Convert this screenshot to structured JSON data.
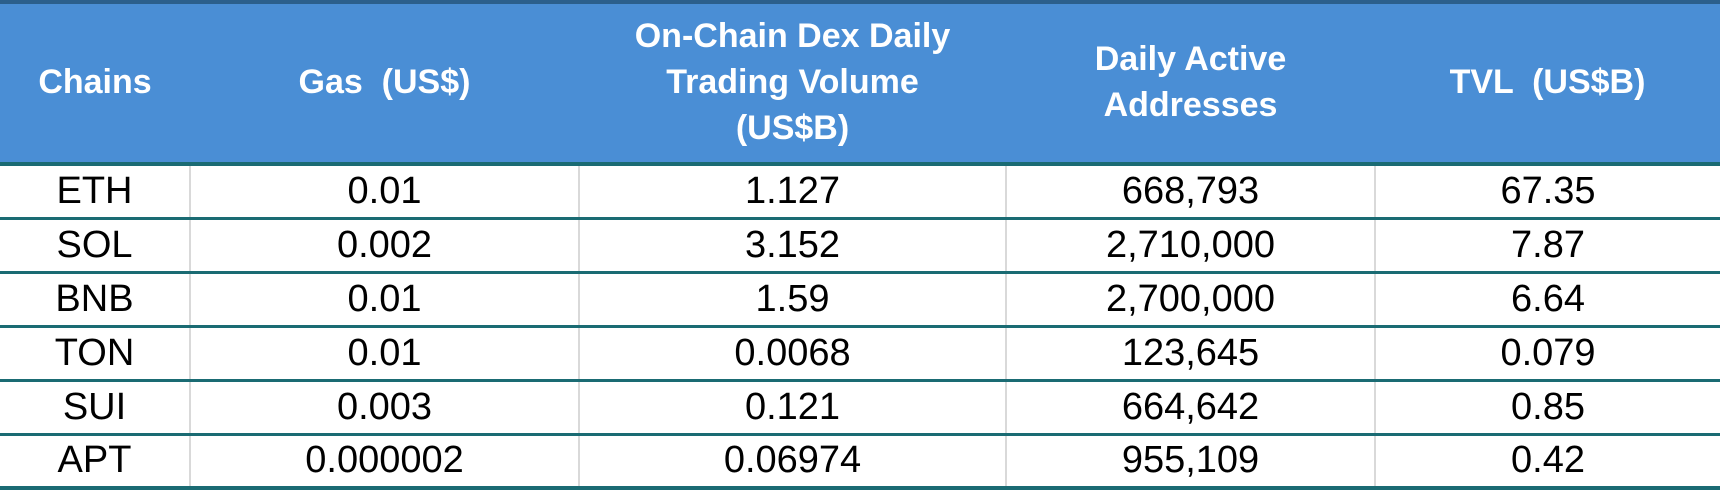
{
  "table": {
    "columns": [
      {
        "id": "chains",
        "label": "Chains"
      },
      {
        "id": "gas",
        "label": "Gas  (US$)"
      },
      {
        "id": "dex-volume",
        "label": "On-Chain Dex Daily\nTrading Volume\n(US$B)"
      },
      {
        "id": "daa",
        "label": "Daily Active\nAddresses"
      },
      {
        "id": "tvl",
        "label": "TVL  (US$B)"
      }
    ],
    "rows": [
      [
        "ETH",
        "0.01",
        "1.127",
        "668,793",
        "67.35"
      ],
      [
        "SOL",
        "0.002",
        "3.152",
        "2,710,000",
        "7.87"
      ],
      [
        "BNB",
        "0.01",
        "1.59",
        "2,700,000",
        "6.64"
      ],
      [
        "TON",
        "0.01",
        "0.0068",
        "123,645",
        "0.079"
      ],
      [
        "SUI",
        "0.003",
        "0.121",
        "664,642",
        "0.85"
      ],
      [
        "APT",
        "0.000002",
        "0.06974",
        "955,109",
        "0.42"
      ]
    ]
  },
  "colors": {
    "header_bg": "#4A8ED5",
    "header_text": "#FFFFFF",
    "top_border": "#2B5F8C",
    "row_divider": "#1A6B73",
    "column_divider": "#D9D9D9",
    "body_bg": "#FFFFFF",
    "body_text": "#000000"
  },
  "chart_data": {
    "type": "table",
    "title": "Blockchain Chains Comparison",
    "columns": [
      "Chains",
      "Gas (US$)",
      "On-Chain Dex Daily Trading Volume (US$B)",
      "Daily Active Addresses",
      "TVL (US$B)"
    ],
    "rows": [
      {
        "chain": "ETH",
        "gas_usd": 0.01,
        "dex_daily_volume_usdb": 1.127,
        "daily_active_addresses": 668793,
        "tvl_usdb": 67.35
      },
      {
        "chain": "SOL",
        "gas_usd": 0.002,
        "dex_daily_volume_usdb": 3.152,
        "daily_active_addresses": 2710000,
        "tvl_usdb": 7.87
      },
      {
        "chain": "BNB",
        "gas_usd": 0.01,
        "dex_daily_volume_usdb": 1.59,
        "daily_active_addresses": 2700000,
        "tvl_usdb": 6.64
      },
      {
        "chain": "TON",
        "gas_usd": 0.01,
        "dex_daily_volume_usdb": 0.0068,
        "daily_active_addresses": 123645,
        "tvl_usdb": 0.079
      },
      {
        "chain": "SUI",
        "gas_usd": 0.003,
        "dex_daily_volume_usdb": 0.121,
        "daily_active_addresses": 664642,
        "tvl_usdb": 0.85
      },
      {
        "chain": "APT",
        "gas_usd": 2e-06,
        "dex_daily_volume_usdb": 0.06974,
        "daily_active_addresses": 955109,
        "tvl_usdb": 0.42
      }
    ]
  }
}
